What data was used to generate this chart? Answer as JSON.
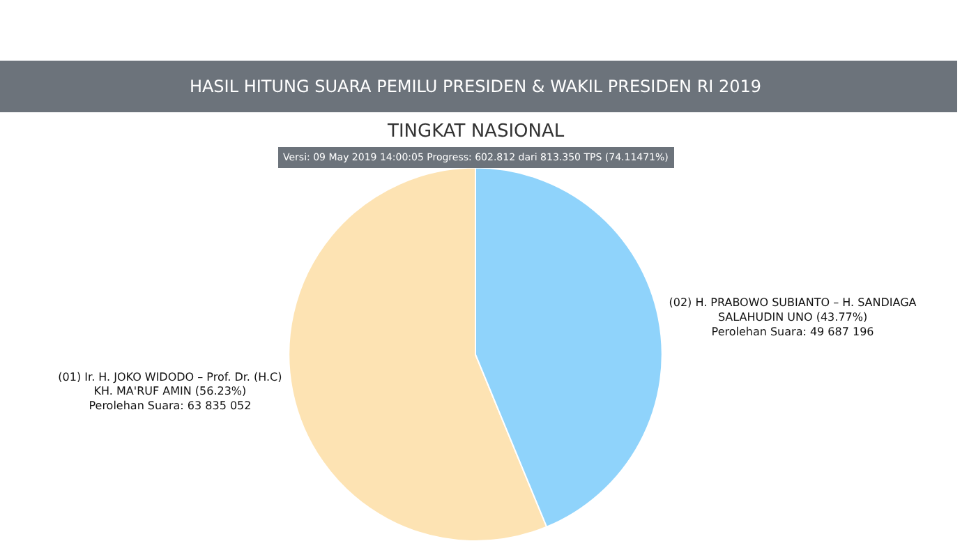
{
  "chart_data": {
    "type": "pie",
    "title": "HASIL HITUNG SUARA PEMILU PRESIDEN & WAKIL PRESIDEN RI 2019",
    "subtitle": "TINGKAT NASIONAL",
    "annotations": [
      "Versi: 09 May 2019 14:00:05 Progress: 602.812 dari 813.350 TPS (74.11471%)"
    ],
    "categories": [
      "(01) Ir. H. JOKO WIDODO – Prof. Dr. (H.C) KH. MA'RUF AMIN",
      "(02) H. PRABOWO SUBIANTO – H. SANDIAGA SALAHUDIN UNO"
    ],
    "values": [
      63835052,
      49687196
    ],
    "value_labels": [
      "(56.23%)\nPerolehan Suara: 63 835 052",
      "(43.77%)\nPerolehan Suara: 49 687 196"
    ],
    "colors": [
      "#fde3b3",
      "#8fd3fb"
    ],
    "legend": false
  }
}
